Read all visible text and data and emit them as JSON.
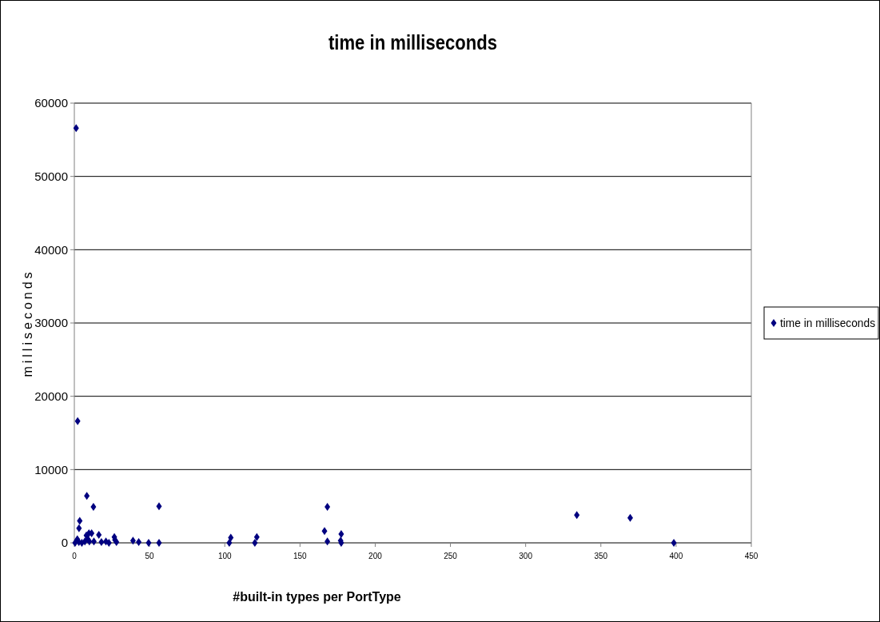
{
  "chart_data": {
    "type": "scatter",
    "title": "time in milliseconds",
    "xlabel": "#built-in types per PortType",
    "ylabel": "milliseconds",
    "xlim": [
      0,
      450
    ],
    "xticks": [
      0,
      50,
      100,
      150,
      200,
      250,
      300,
      350,
      400,
      450
    ],
    "ylim": [
      0,
      60000
    ],
    "yticks": [
      0,
      10000,
      20000,
      30000,
      40000,
      50000,
      60000
    ],
    "grid": "y",
    "legend": "right",
    "marker": "diamond",
    "series": [
      {
        "name": "time in milliseconds",
        "color": "#000080",
        "x": [
          1.2,
          2.2,
          3.6,
          3.1,
          8.3,
          12.7,
          56.3,
          16.3,
          9.7,
          11.5,
          26.6,
          39,
          42.8,
          49.4,
          56.3,
          0.5,
          2,
          3,
          5,
          7,
          8,
          9,
          10,
          13,
          18,
          21,
          23,
          27,
          28,
          104,
          103,
          121.3,
          120,
          168.2,
          166.3,
          168.2,
          177.4,
          177.4,
          177,
          334,
          369.5,
          398.5
        ],
        "values": [
          56600,
          16600,
          3000,
          2000,
          6400,
          4900,
          5000,
          1100,
          1300,
          1300,
          800,
          300,
          100,
          0,
          0,
          0,
          500,
          100,
          0,
          200,
          1000,
          500,
          200,
          200,
          100,
          200,
          0,
          400,
          100,
          700,
          0,
          800,
          0,
          4900,
          1600,
          200,
          1200,
          0,
          300,
          3800,
          3400,
          0
        ]
      }
    ]
  }
}
